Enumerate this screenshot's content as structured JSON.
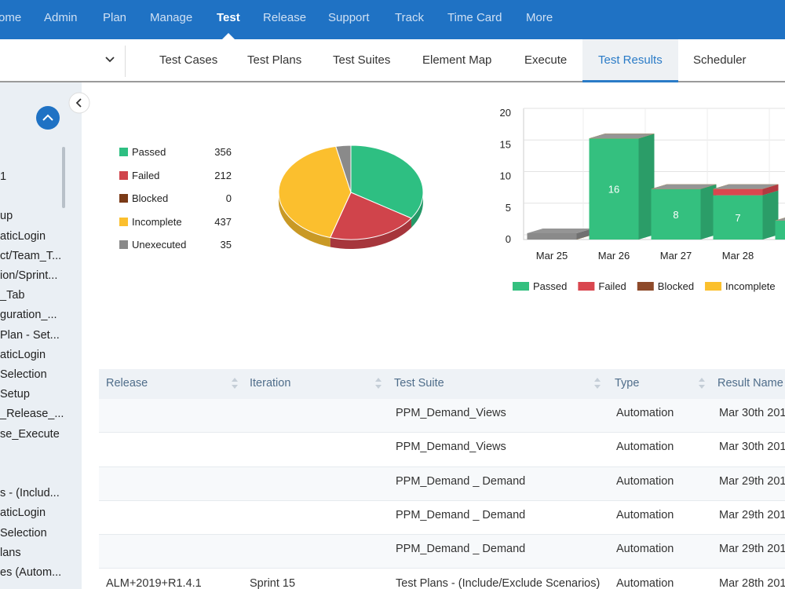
{
  "nav": {
    "items": [
      "ome",
      "Admin",
      "Plan",
      "Manage",
      "Test",
      "Release",
      "Support",
      "Track",
      "Time Card",
      "More"
    ],
    "active": 4
  },
  "subnav": {
    "items": [
      "Test Cases",
      "Test Plans",
      "Test Suites",
      "Element Map",
      "Execute",
      "Test Results",
      "Scheduler"
    ],
    "active": 5
  },
  "sidebar": {
    "items": [
      "1",
      null,
      "up",
      "aticLogin",
      "ct/Team_T...",
      "ion/Sprint...",
      "_Tab",
      "guration_...",
      "Plan - Set...",
      "aticLogin",
      "Selection",
      "Setup",
      "_Release_...",
      "se_Execute",
      null,
      null,
      "s - (Includ...",
      "aticLogin",
      "Selection",
      "lans",
      "es (Autom..."
    ]
  },
  "pie_chart": {
    "type": "pie",
    "categories": [
      "Passed",
      "Failed",
      "Blocked",
      "Incomplete",
      "Unexecuted"
    ],
    "values": [
      356,
      212,
      0,
      437,
      35
    ],
    "colors": [
      "#2ebf82",
      "#d0444b",
      "#7a3a17",
      "#fbbf2e",
      "#8a8a8a"
    ]
  },
  "bar_chart": {
    "type": "bar",
    "stacked": true,
    "categories": [
      "Mar 25",
      "Mar 26",
      "Mar 27",
      "Mar 28",
      null
    ],
    "series": [
      {
        "name": "Passed",
        "color": "#34c07f",
        "values": [
          0,
          16,
          8,
          7,
          3
        ]
      },
      {
        "name": "Failed",
        "color": "#d9474f",
        "values": [
          0,
          0,
          0,
          1,
          0
        ]
      },
      {
        "name": "Blocked",
        "color": "#8e4a2a",
        "values": [
          0,
          0,
          0,
          0,
          0
        ]
      },
      {
        "name": "Incomplete",
        "color": "#fbc02d",
        "values": [
          0,
          0,
          0,
          0,
          0
        ]
      },
      {
        "color": "#8a8a8a",
        "values": [
          1,
          0,
          0,
          0,
          0
        ]
      }
    ],
    "ylim": [
      0,
      20
    ],
    "yticks": [
      0,
      5,
      10,
      15,
      20
    ],
    "grid": true
  },
  "table": {
    "headers": [
      "Release",
      "Iteration",
      "Test Suite",
      "Type",
      "Result Name"
    ],
    "rows": [
      [
        null,
        null,
        "PPM_Demand_Views",
        "Automation",
        "Mar 30th 201"
      ],
      [
        null,
        null,
        "PPM_Demand_Views",
        "Automation",
        "Mar 30th 201"
      ],
      [
        null,
        null,
        "PPM_Demand _ Demand",
        "Automation",
        "Mar 29th 201"
      ],
      [
        null,
        null,
        "PPM_Demand _ Demand",
        "Automation",
        "Mar 29th 201"
      ],
      [
        null,
        null,
        "PPM_Demand _ Demand",
        "Automation",
        "Mar 29th 201"
      ],
      [
        "ALM+2019+R1.4.1",
        "Sprint 15",
        "Test Plans - (Include/Exclude Scenarios)",
        "Automation",
        "Mar 28th 201"
      ]
    ]
  }
}
